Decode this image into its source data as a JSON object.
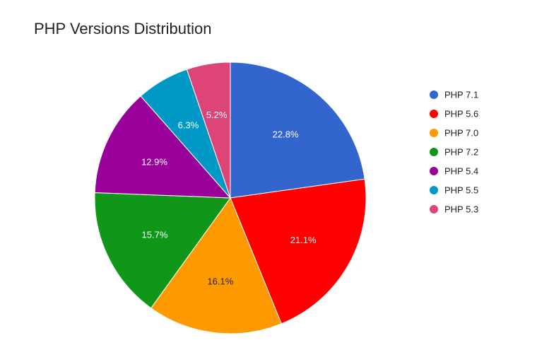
{
  "chart_data": {
    "type": "pie",
    "title": "PHP Versions Distribution",
    "legend_position": "right",
    "slices": [
      {
        "label": "PHP 7.1",
        "value": 22.8,
        "display": "22.8%",
        "color": "#3366cc",
        "label_color": "#ffffff"
      },
      {
        "label": "PHP 5.6",
        "value": 21.1,
        "display": "21.1%",
        "color": "#ff0000",
        "label_color": "#ffffff"
      },
      {
        "label": "PHP 7.0",
        "value": 16.1,
        "display": "16.1%",
        "color": "#ff9900",
        "label_color": "#222222"
      },
      {
        "label": "PHP 7.2",
        "value": 15.7,
        "display": "15.7%",
        "color": "#109618",
        "label_color": "#ffffff"
      },
      {
        "label": "PHP 5.4",
        "value": 12.9,
        "display": "12.9%",
        "color": "#990099",
        "label_color": "#ffffff"
      },
      {
        "label": "PHP 5.5",
        "value": 6.3,
        "display": "6.3%",
        "color": "#0099c6",
        "label_color": "#ffffff"
      },
      {
        "label": "PHP 5.3",
        "value": 5.2,
        "display": "5.2%",
        "color": "#dd4477",
        "label_color": "#ffffff"
      }
    ]
  }
}
